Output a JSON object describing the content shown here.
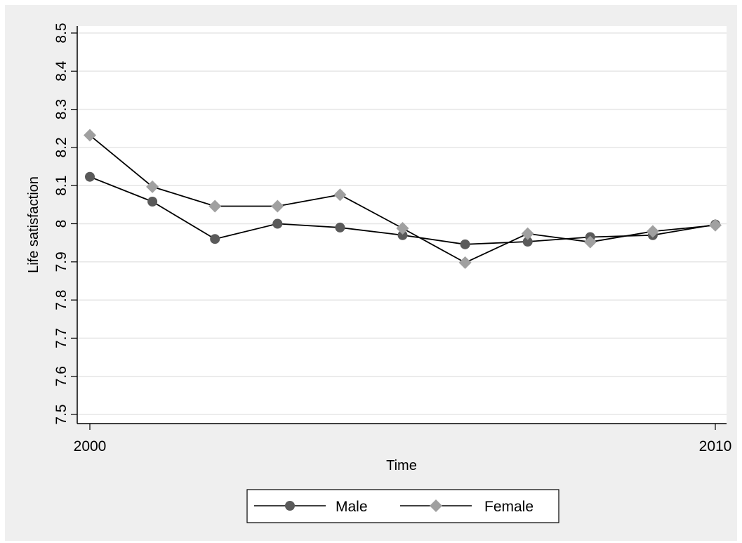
{
  "chart_data": {
    "type": "line",
    "title": "",
    "xlabel": "Time",
    "ylabel": "Life satisfaction",
    "xlim": [
      2000,
      2010
    ],
    "ylim": [
      7.5,
      8.5
    ],
    "x": [
      2000,
      2001,
      2002,
      2003,
      2004,
      2005,
      2006,
      2007,
      2008,
      2009,
      2010
    ],
    "x_ticks": [
      {
        "value": 2000,
        "label": "2000"
      },
      {
        "value": 2010,
        "label": "2010"
      }
    ],
    "y_ticks": [
      {
        "value": 7.5,
        "label": "7.5"
      },
      {
        "value": 7.6,
        "label": "7.6"
      },
      {
        "value": 7.7,
        "label": "7.7"
      },
      {
        "value": 7.8,
        "label": "7.8"
      },
      {
        "value": 7.9,
        "label": "7.9"
      },
      {
        "value": 8.0,
        "label": "8"
      },
      {
        "value": 8.1,
        "label": "8.1"
      },
      {
        "value": 8.2,
        "label": "8.2"
      },
      {
        "value": 8.3,
        "label": "8.3"
      },
      {
        "value": 8.4,
        "label": "8.4"
      },
      {
        "value": 8.5,
        "label": "8.5"
      }
    ],
    "grid": true,
    "legend_position": "bottom",
    "series": [
      {
        "name": "Male",
        "marker": "circle",
        "color": "#5a5a5a",
        "values": [
          8.123,
          8.058,
          7.96,
          8.0,
          7.99,
          7.97,
          7.946,
          7.953,
          7.965,
          7.97,
          7.998
        ]
      },
      {
        "name": "Female",
        "marker": "diamond",
        "color": "#a0a0a0",
        "values": [
          8.232,
          8.097,
          8.046,
          8.046,
          8.076,
          7.988,
          7.898,
          7.974,
          7.952,
          7.98,
          7.996
        ]
      }
    ],
    "colors": {
      "outer_background": "#efefef",
      "plot_background": "#ffffff",
      "grid": "#e6e6e6",
      "line": "#000000"
    }
  }
}
